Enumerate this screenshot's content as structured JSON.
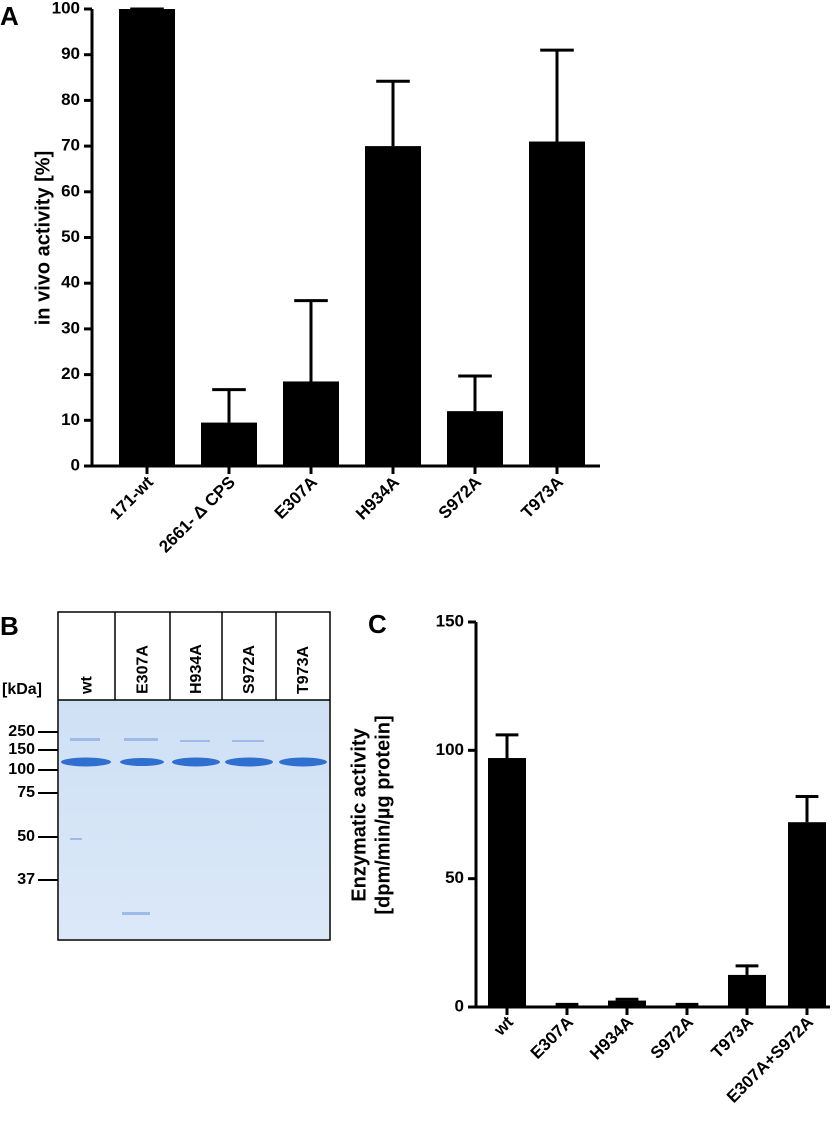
{
  "chart_data": [
    {
      "type": "bar",
      "panel": "A",
      "ylabel": [
        "in vivo activity [%]"
      ],
      "categories": [
        "171-wt",
        "2661- Δ CPS",
        "E307A",
        "H934A",
        "S972A",
        "T973A"
      ],
      "values": [
        100,
        9.5,
        18.5,
        70,
        12,
        71
      ],
      "errors": [
        0,
        7.2,
        17.7,
        14.2,
        7.7,
        20
      ],
      "color": "#000000",
      "ylim": [
        0,
        100
      ],
      "yticks": [
        0,
        10,
        20,
        30,
        40,
        50,
        60,
        70,
        80,
        90,
        100
      ]
    },
    {
      "type": "bar",
      "panel": "C",
      "ylabel": [
        "Enzymatic activity",
        "[dpm/min/µg protein]"
      ],
      "categories": [
        "wt",
        "E307A",
        "H934A",
        "S972A",
        "T973A",
        "E307A+S972A"
      ],
      "values": [
        97,
        0.5,
        2.5,
        0.5,
        12.5,
        72
      ],
      "errors": [
        9,
        0.5,
        0.5,
        0.5,
        3.5,
        10
      ],
      "color": "#000000",
      "ylim": [
        0,
        150
      ],
      "yticks": [
        0,
        50,
        100,
        150
      ]
    }
  ],
  "gel": {
    "panel": "B",
    "unit_label": "[kDa]",
    "lanes": [
      "wt",
      "E307A",
      "H934A",
      "S972A",
      "T973A"
    ],
    "markers": [
      250,
      150,
      100,
      75,
      50,
      37
    ]
  }
}
